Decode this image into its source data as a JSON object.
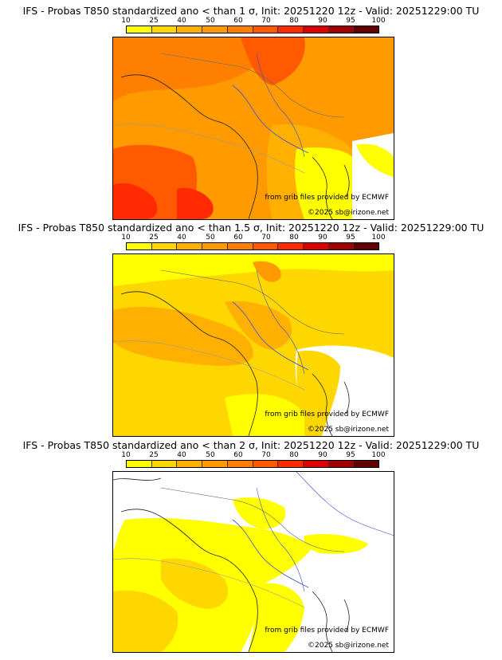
{
  "legend": {
    "thresholds": [
      "10",
      "25",
      "40",
      "50",
      "60",
      "70",
      "80",
      "90",
      "95",
      "100"
    ],
    "colors": [
      "#ffff00",
      "#ffd700",
      "#ffb000",
      "#ff9a00",
      "#ff8000",
      "#ff5a00",
      "#ff2a00",
      "#dd0000",
      "#a00000",
      "#600000"
    ]
  },
  "credit": "from grib files provided by ECMWF",
  "copyright": "©2025 sb@irizone.net",
  "panels": [
    {
      "title": "IFS - Probas T850  standardized ano < than 1 σ, Init: 20251220 12z - Valid: 20251229:00 TU"
    },
    {
      "title": "IFS - Probas T850  standardized ano < than 1.5 σ, Init: 20251220 12z - Valid: 20251229:00 TU"
    },
    {
      "title": "IFS - Probas T850  standardized ano < than 2 σ, Init: 20251220 12z - Valid: 20251229:00 TU"
    }
  ]
}
